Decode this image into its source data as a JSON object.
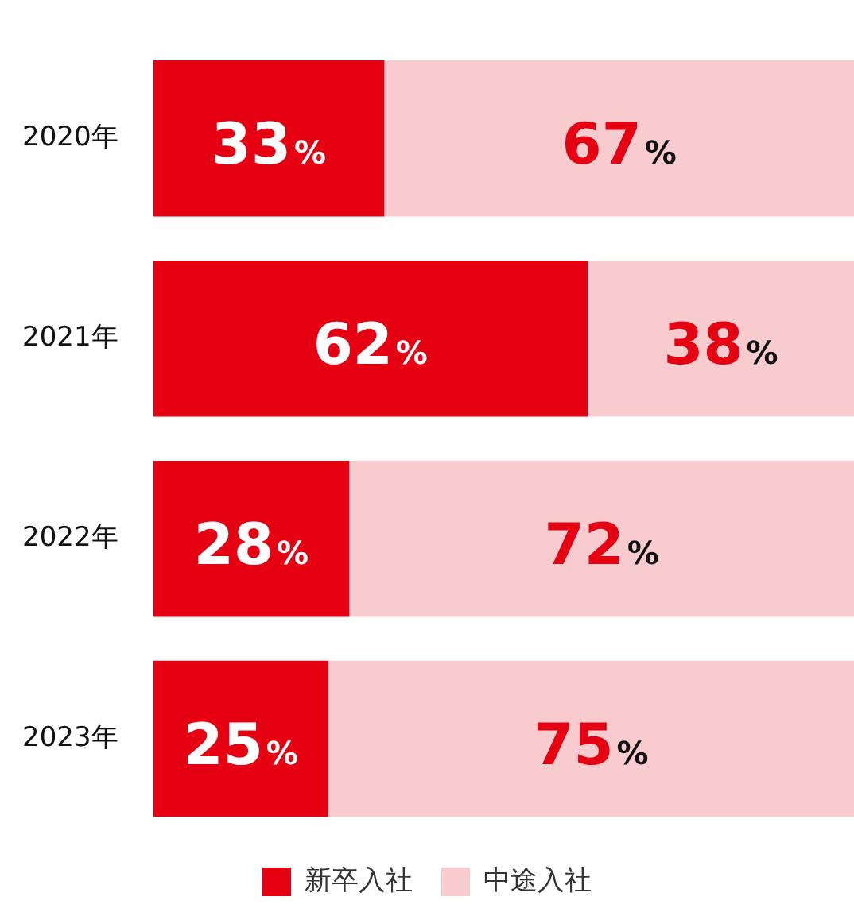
{
  "chart_data": {
    "type": "bar",
    "orientation": "horizontal",
    "stacked": true,
    "categories": [
      "2020年",
      "2021年",
      "2022年",
      "2023年"
    ],
    "series": [
      {
        "name": "新卒入社",
        "color": "#e50012",
        "values": [
          33,
          62,
          28,
          25
        ],
        "value_labels": [
          "33%",
          "62%",
          "28%",
          "25%"
        ]
      },
      {
        "name": "中途入社",
        "color": "#f8cbce",
        "values": [
          67,
          38,
          72,
          75
        ],
        "value_labels": [
          "67%",
          "38%",
          "72%",
          "75%"
        ]
      }
    ],
    "xlim": [
      0,
      100
    ],
    "tick_labels": "y",
    "legend": "bottom"
  }
}
